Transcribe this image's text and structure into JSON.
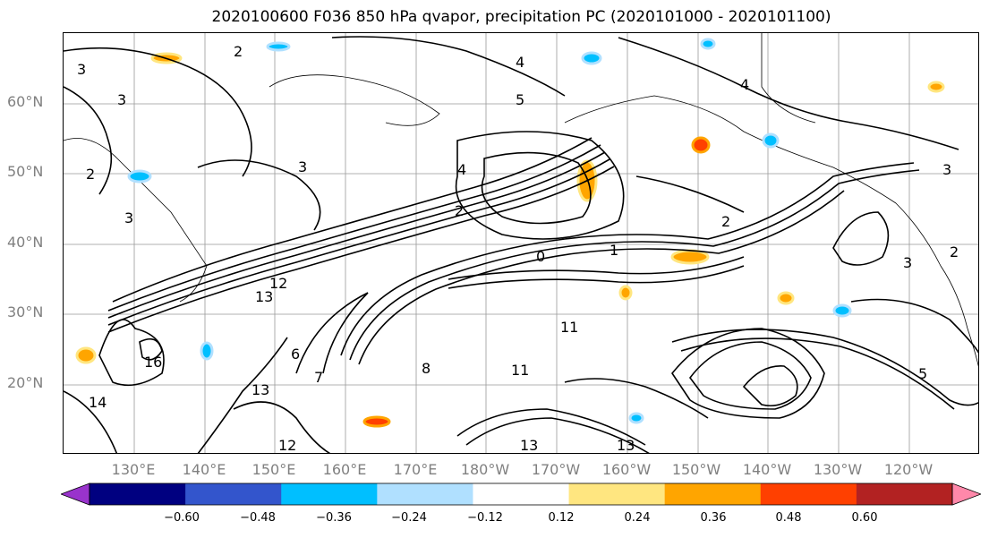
{
  "title": "2020100600 F036 850 hPa qvapor, precipitation PC (2020101000 - 2020101100)",
  "map": {
    "lat_labels": [
      "60°N",
      "50°N",
      "40°N",
      "30°N",
      "20°N"
    ],
    "lon_labels": [
      "130°E",
      "140°E",
      "150°E",
      "160°E",
      "170°E",
      "180°W",
      "170°W",
      "160°W",
      "150°W",
      "140°W",
      "130°W",
      "120°W"
    ],
    "contour_labels": [
      "2",
      "3",
      "3",
      "4",
      "3",
      "2",
      "3",
      "4",
      "2",
      "0",
      "1",
      "2",
      "3",
      "4",
      "5",
      "12",
      "13",
      "11",
      "8",
      "6",
      "7",
      "11",
      "13",
      "14",
      "16",
      "12",
      "13",
      "13",
      "5",
      "3",
      "2"
    ]
  },
  "colorbar": {
    "colors": [
      "#9933cc",
      "#000080",
      "#3355cc",
      "#00bfff",
      "#b0e0ff",
      "#ffffff",
      "#ffe680",
      "#ffa500",
      "#ff4000",
      "#b22222",
      "#ff88aa"
    ],
    "tick_labels": [
      "−0.60",
      "−0.48",
      "−0.36",
      "−0.24",
      "−0.12",
      "0.12",
      "0.24",
      "0.36",
      "0.48",
      "0.60"
    ]
  }
}
